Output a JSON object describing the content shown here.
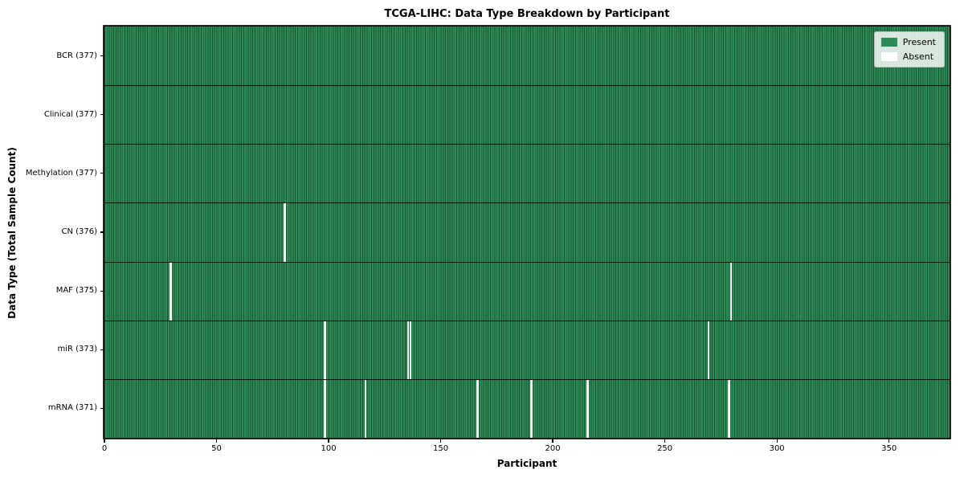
{
  "title": "TCGA-LIHC: Data Type Breakdown by Participant",
  "chart_data": {
    "type": "heatmap",
    "title": "TCGA-LIHC: Data Type Breakdown by Participant",
    "xlabel": "Participant",
    "ylabel": "Data Type (Total Sample Count)",
    "n_participants": 377,
    "xlim": [
      0,
      377
    ],
    "x_ticks": [
      0,
      50,
      100,
      150,
      200,
      250,
      300,
      350
    ],
    "grid": "cell-edges",
    "legend_position": "upper right",
    "legend": [
      {
        "label": "Present",
        "color": "#2e8b57"
      },
      {
        "label": "Absent",
        "color": "#ffffff"
      }
    ],
    "rows": [
      {
        "label": "BCR (377)",
        "data_type": "BCR",
        "total": 377,
        "absent_participants": []
      },
      {
        "label": "Clinical (377)",
        "data_type": "Clinical",
        "total": 377,
        "absent_participants": []
      },
      {
        "label": "Methylation (377)",
        "data_type": "Methylation",
        "total": 377,
        "absent_participants": []
      },
      {
        "label": "CN (376)",
        "data_type": "CN",
        "total": 376,
        "absent_participants": [
          80
        ]
      },
      {
        "label": "MAF (375)",
        "data_type": "MAF",
        "total": 375,
        "absent_participants": [
          29,
          279
        ]
      },
      {
        "label": "miR (373)",
        "data_type": "miR",
        "total": 373,
        "absent_participants": [
          98,
          135,
          136,
          269
        ]
      },
      {
        "label": "mRNA (371)",
        "data_type": "mRNA",
        "total": 371,
        "absent_participants": [
          98,
          116,
          166,
          190,
          215,
          278
        ]
      }
    ]
  },
  "colors": {
    "present": "#2e8b57",
    "absent": "#ffffff",
    "cell_edge": "rgba(0,25,10,0.48)",
    "row_separator": "rgba(0,0,0,0.85)",
    "frame": "#000000",
    "legend_border": "#b9c2ba"
  }
}
